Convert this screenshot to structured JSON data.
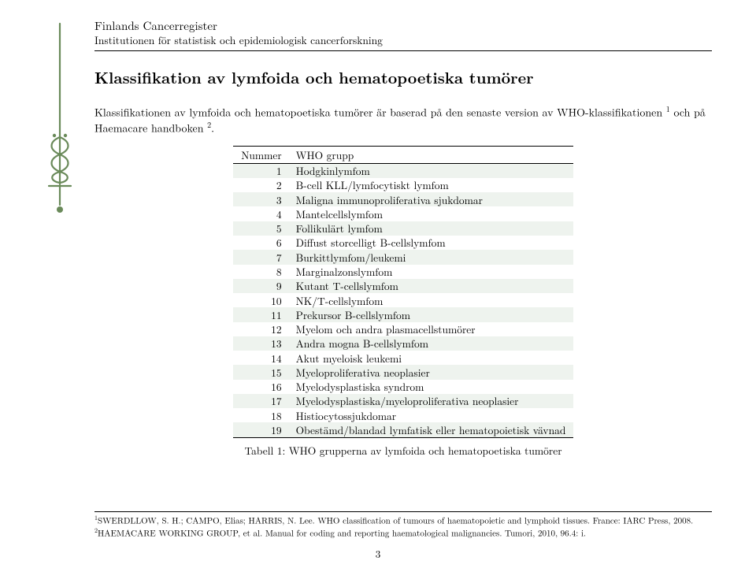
{
  "header": {
    "organization": "Finlands Cancerregister",
    "institution": "Institutionen för statistisk och epidemiologisk cancerforskning"
  },
  "title": "Klassifikation av lymfoida och hematopoetiska tumörer",
  "intro": {
    "before_fn1": "Klassifikationen av lymfoida och hematopoetiska tumörer är baserad på den senaste version av WHO-klassifikationen ",
    "fn1": "1",
    "between": " och på Haemacare handboken ",
    "fn2": "2",
    "after": "."
  },
  "table": {
    "header_num": "Nummer",
    "header_group": "WHO grupp",
    "rows": [
      {
        "n": "1",
        "t": "Hodgkinlymfom"
      },
      {
        "n": "2",
        "t": "B-cell KLL/lymfocytiskt lymfom"
      },
      {
        "n": "3",
        "t": "Maligna immunoproliferativa sjukdomar"
      },
      {
        "n": "4",
        "t": "Mantelcellslymfom"
      },
      {
        "n": "5",
        "t": "Follikulärt lymfom"
      },
      {
        "n": "6",
        "t": "Diffust storcelligt B-cellslymfom"
      },
      {
        "n": "7",
        "t": "Burkittlymfom/leukemi"
      },
      {
        "n": "8",
        "t": "Marginalzonslymfom"
      },
      {
        "n": "9",
        "t": "Kutant T-cellslymfom"
      },
      {
        "n": "10",
        "t": "NK/T-cellslymfom"
      },
      {
        "n": "11",
        "t": "Prekursor B-cellslymfom"
      },
      {
        "n": "12",
        "t": "Myelom och andra plasmacellstumörer"
      },
      {
        "n": "13",
        "t": "Andra mogna B-cellslymfom"
      },
      {
        "n": "14",
        "t": "Akut myeloisk leukemi"
      },
      {
        "n": "15",
        "t": "Myeloproliferativa neoplasier"
      },
      {
        "n": "16",
        "t": "Myelodysplastiska syndrom"
      },
      {
        "n": "17",
        "t": "Myelodysplastiska/myeloproliferativa neoplasier"
      },
      {
        "n": "18",
        "t": "Histiocytossjukdomar"
      },
      {
        "n": "19",
        "t": "Obestämd/blandad lymfatisk eller hematopoietisk vävnad"
      }
    ],
    "caption": "Tabell 1: WHO grupperna av lymfoida och hematopoetiska tumörer",
    "stripe_color": "#eef3ee"
  },
  "footnotes": {
    "fn1_mark": "1",
    "fn1_text": "SWERDLLOW, S. H.; CAMPO, Elias; HARRIS, N. Lee. WHO classification of tumours of haematopoietic and lymphoid tissues. France: IARC Press, 2008.",
    "fn2_mark": "2",
    "fn2_text": "HAEMACARE WORKING GROUP, et al. Manual for coding and reporting haematological malignancies. Tumori, 2010, 96.4: i."
  },
  "page_number": "3",
  "logo": {
    "stroke": "#6a8a5a",
    "fill": "#6a8a5a"
  }
}
